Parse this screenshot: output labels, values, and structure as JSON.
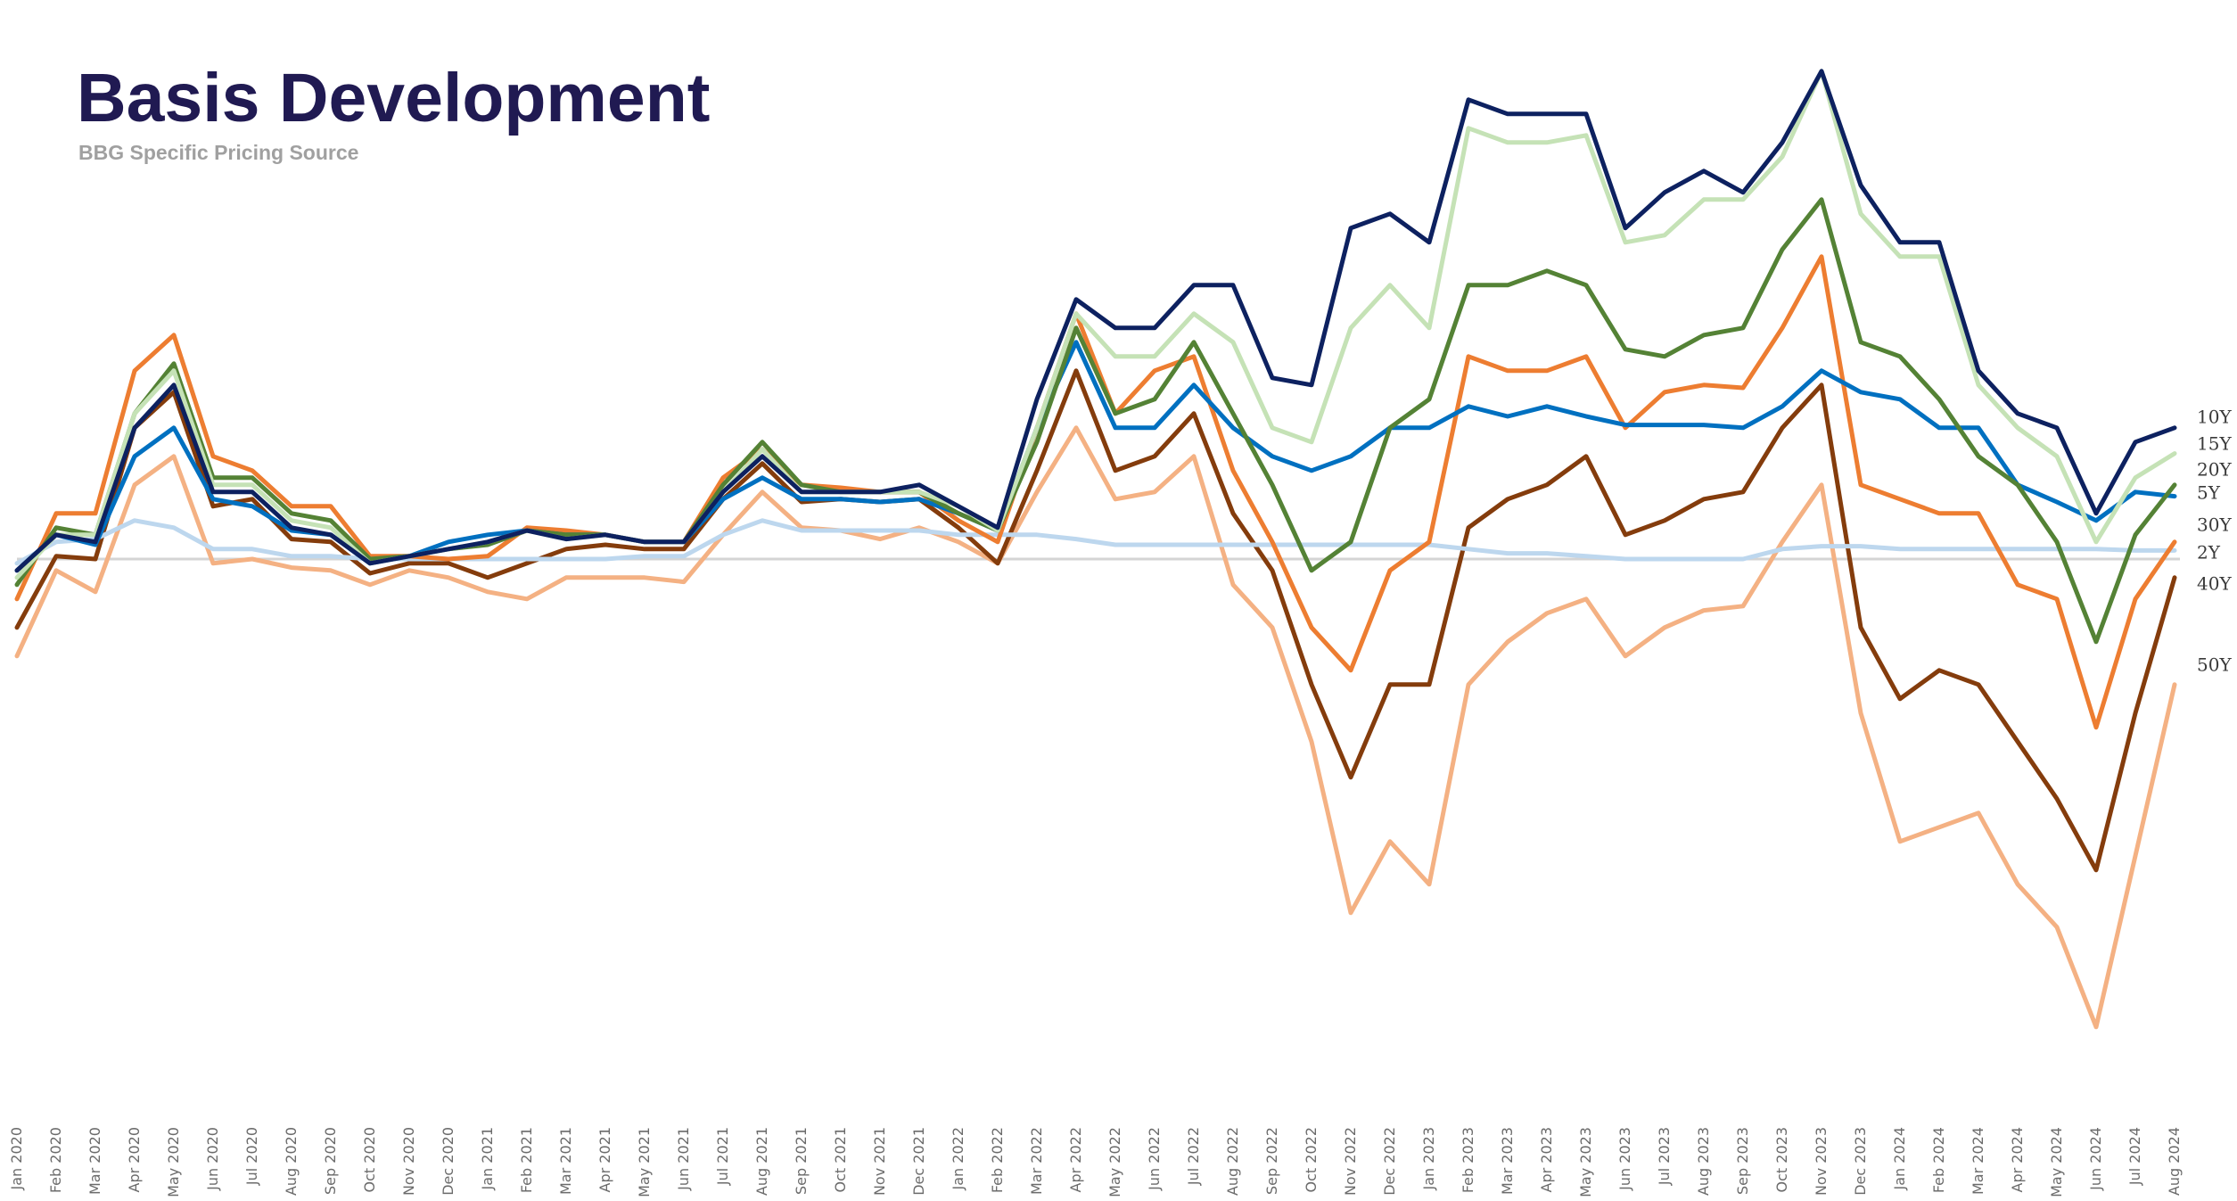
{
  "chart_data": {
    "type": "line",
    "title": "Basis Development",
    "subtitle": "BBG Specific Pricing Source",
    "categories": [
      "Jan 2020",
      "Feb 2020",
      "Mar 2020",
      "Apr 2020",
      "May 2020",
      "Jun 2020",
      "Jul 2020",
      "Aug 2020",
      "Sep 2020",
      "Oct 2020",
      "Nov 2020",
      "Dec 2020",
      "Jan 2021",
      "Feb 2021",
      "Mar 2021",
      "Apr 2021",
      "May 2021",
      "Jun 2021",
      "Jul 2021",
      "Aug 2021",
      "Sep 2021",
      "Oct 2021",
      "Nov 2021",
      "Dec 2021",
      "Jan 2022",
      "Feb 2022",
      "Mar 2022",
      "Apr 2022",
      "May 2022",
      "Jun 2022",
      "Jul 2022",
      "Aug 2022",
      "Sep 2022",
      "Oct 2022",
      "Nov 2022",
      "Dec 2022",
      "Jan 2023",
      "Feb 2023",
      "Mar 2023",
      "Apr 2023",
      "May 2023",
      "Jun 2023",
      "Jul 2023",
      "Aug 2023",
      "Sep 2023",
      "Oct 2023",
      "Nov 2023",
      "Dec 2023",
      "Jan 2024",
      "Feb 2024",
      "Mar 2024",
      "Apr 2024",
      "May 2024",
      "Jun 2024",
      "Jul 2024",
      "Aug 2024"
    ],
    "ylim": [
      -36,
      36
    ],
    "series": [
      {
        "name": "10Y",
        "color": "#0d2160",
        "values": [
          -0.8,
          1.7,
          1.2,
          9.2,
          12.2,
          4.7,
          4.7,
          2.2,
          1.7,
          -0.3,
          0.2,
          0.7,
          1.2,
          2,
          1.4,
          1.7,
          1.2,
          1.2,
          4.7,
          7.2,
          4.7,
          4.7,
          4.7,
          5.2,
          3.7,
          2.2,
          11.2,
          18.2,
          16.2,
          16.2,
          19.2,
          19.2,
          12.7,
          12.2,
          23.2,
          24.2,
          22.2,
          32.2,
          31.2,
          31.2,
          31.2,
          23.2,
          25.7,
          27.2,
          25.7,
          29.2,
          34.2,
          26.2,
          22.2,
          22.2,
          13.2,
          10.2,
          9.2,
          3.2,
          8.2,
          9.2
        ]
      },
      {
        "name": "15Y",
        "color": "#c5e2b6",
        "values": [
          -1.3,
          1.7,
          1.7,
          10.2,
          13.2,
          5.2,
          5.2,
          2.7,
          2.2,
          -0.3,
          0.2,
          0.7,
          1.2,
          2,
          1.4,
          1.7,
          1.2,
          1.2,
          4.7,
          7.7,
          4.7,
          4.7,
          4.7,
          4.7,
          3.7,
          2,
          9.2,
          17.2,
          14.2,
          14.2,
          17.2,
          15.2,
          9.2,
          8.2,
          16.2,
          19.2,
          16.2,
          30.2,
          29.2,
          29.2,
          29.7,
          22.2,
          22.7,
          25.2,
          25.2,
          28.2,
          34.2,
          24.2,
          21.2,
          21.2,
          12.2,
          9.2,
          7.2,
          1.2,
          5.7,
          7.4
        ]
      },
      {
        "name": "20Y",
        "color": "#548235",
        "values": [
          -1.8,
          2.2,
          1.7,
          10.2,
          13.7,
          5.7,
          5.7,
          3.2,
          2.7,
          0,
          0.2,
          0.7,
          1,
          2,
          1.7,
          1.7,
          1.2,
          1.2,
          5.2,
          8.2,
          5.2,
          4.7,
          4.7,
          4.7,
          3.2,
          2,
          8.2,
          16.2,
          10.2,
          11.2,
          15.2,
          10.2,
          5.2,
          -0.8,
          1.2,
          9.2,
          11.2,
          19.2,
          19.2,
          20.2,
          19.2,
          14.7,
          14.2,
          15.7,
          16.2,
          21.7,
          25.2,
          15.2,
          14.2,
          11.2,
          7.2,
          5.2,
          1.2,
          -5.8,
          1.7,
          5.2
        ]
      },
      {
        "name": "5Y",
        "color": "#0070c0",
        "values": [
          -0.8,
          1.7,
          1,
          7.2,
          9.2,
          4.2,
          3.7,
          2,
          1.7,
          -0.3,
          0.2,
          1.2,
          1.7,
          2,
          1.7,
          1.7,
          1.2,
          1.2,
          4.2,
          5.7,
          4.2,
          4.2,
          4,
          4.2,
          3.2,
          2,
          9.2,
          15.2,
          9.2,
          9.2,
          12.2,
          9.2,
          7.2,
          6.2,
          7.2,
          9.2,
          9.2,
          10.7,
          10,
          10.7,
          10,
          9.4,
          9.4,
          9.4,
          9.2,
          10.7,
          13.2,
          11.7,
          11.2,
          9.2,
          9.2,
          5.2,
          4,
          2.7,
          4.7,
          4.4
        ]
      },
      {
        "name": "30Y",
        "color": "#ed7d31",
        "values": [
          -2.8,
          3.2,
          3.2,
          13.2,
          15.7,
          7.2,
          6.2,
          3.7,
          3.7,
          0.2,
          0.2,
          0,
          0.2,
          2.2,
          2,
          1.7,
          1.2,
          1.2,
          5.7,
          7.7,
          5.2,
          5,
          4.7,
          4.7,
          2.7,
          1.2,
          9.2,
          17.2,
          10.2,
          13.2,
          14.2,
          6.2,
          1.2,
          -4.8,
          -7.8,
          -0.8,
          1.2,
          14.2,
          13.2,
          13.2,
          14.2,
          9.2,
          11.7,
          12.2,
          12,
          16.2,
          21.2,
          5.2,
          4.2,
          3.2,
          3.2,
          -1.8,
          -2.8,
          -11.8,
          -2.8,
          1.2
        ]
      },
      {
        "name": "2Y",
        "color": "#bdd7ee",
        "values": [
          -0.3,
          1.2,
          1.4,
          2.7,
          2.2,
          0.7,
          0.7,
          0.2,
          0.2,
          0,
          0,
          0,
          0,
          0,
          0,
          0,
          0.2,
          0.2,
          1.7,
          2.7,
          2,
          2,
          2,
          2,
          1.7,
          1.7,
          1.7,
          1.4,
          1,
          1,
          1,
          1,
          1,
          1,
          1,
          1,
          1,
          0.7,
          0.4,
          0.4,
          0.2,
          0,
          0,
          0,
          0,
          0.7,
          0.9,
          0.9,
          0.7,
          0.7,
          0.7,
          0.7,
          0.7,
          0.7,
          0.6,
          0.6
        ]
      },
      {
        "name": "40Y",
        "color": "#843c0c",
        "values": [
          -4.8,
          0.2,
          0,
          9.2,
          11.7,
          3.7,
          4.2,
          1.4,
          1.2,
          -1,
          -0.3,
          -0.3,
          -1.3,
          -0.3,
          0.7,
          1,
          0.7,
          0.7,
          4.2,
          6.7,
          4,
          4.2,
          4,
          4.2,
          2.2,
          -0.3,
          6.2,
          13.2,
          6.2,
          7.2,
          10.2,
          3.2,
          -0.8,
          -8.8,
          -15.3,
          -8.8,
          -8.8,
          2.2,
          4.2,
          5.2,
          7.2,
          1.7,
          2.7,
          4.2,
          4.7,
          9.2,
          12.2,
          -4.8,
          -9.8,
          -7.8,
          -8.8,
          -12.8,
          -16.8,
          -21.8,
          -10.8,
          -1.3
        ]
      },
      {
        "name": "50Y",
        "color": "#f4b183",
        "values": [
          -6.8,
          -0.8,
          -2.3,
          5.2,
          7.2,
          -0.3,
          0,
          -0.6,
          -0.8,
          -1.8,
          -0.8,
          -1.3,
          -2.3,
          -2.8,
          -1.3,
          -1.3,
          -1.3,
          -1.6,
          1.7,
          4.7,
          2.2,
          2,
          1.4,
          2.2,
          1.2,
          -0.3,
          4.7,
          9.2,
          4.2,
          4.7,
          7.2,
          -1.8,
          -4.8,
          -12.8,
          -24.8,
          -19.8,
          -22.8,
          -8.8,
          -5.8,
          -3.8,
          -2.8,
          -6.8,
          -4.8,
          -3.6,
          -3.3,
          1.2,
          5.2,
          -10.8,
          -19.8,
          -18.8,
          -17.8,
          -22.8,
          -25.8,
          -32.8,
          -20.8,
          -8.8
        ]
      }
    ]
  }
}
